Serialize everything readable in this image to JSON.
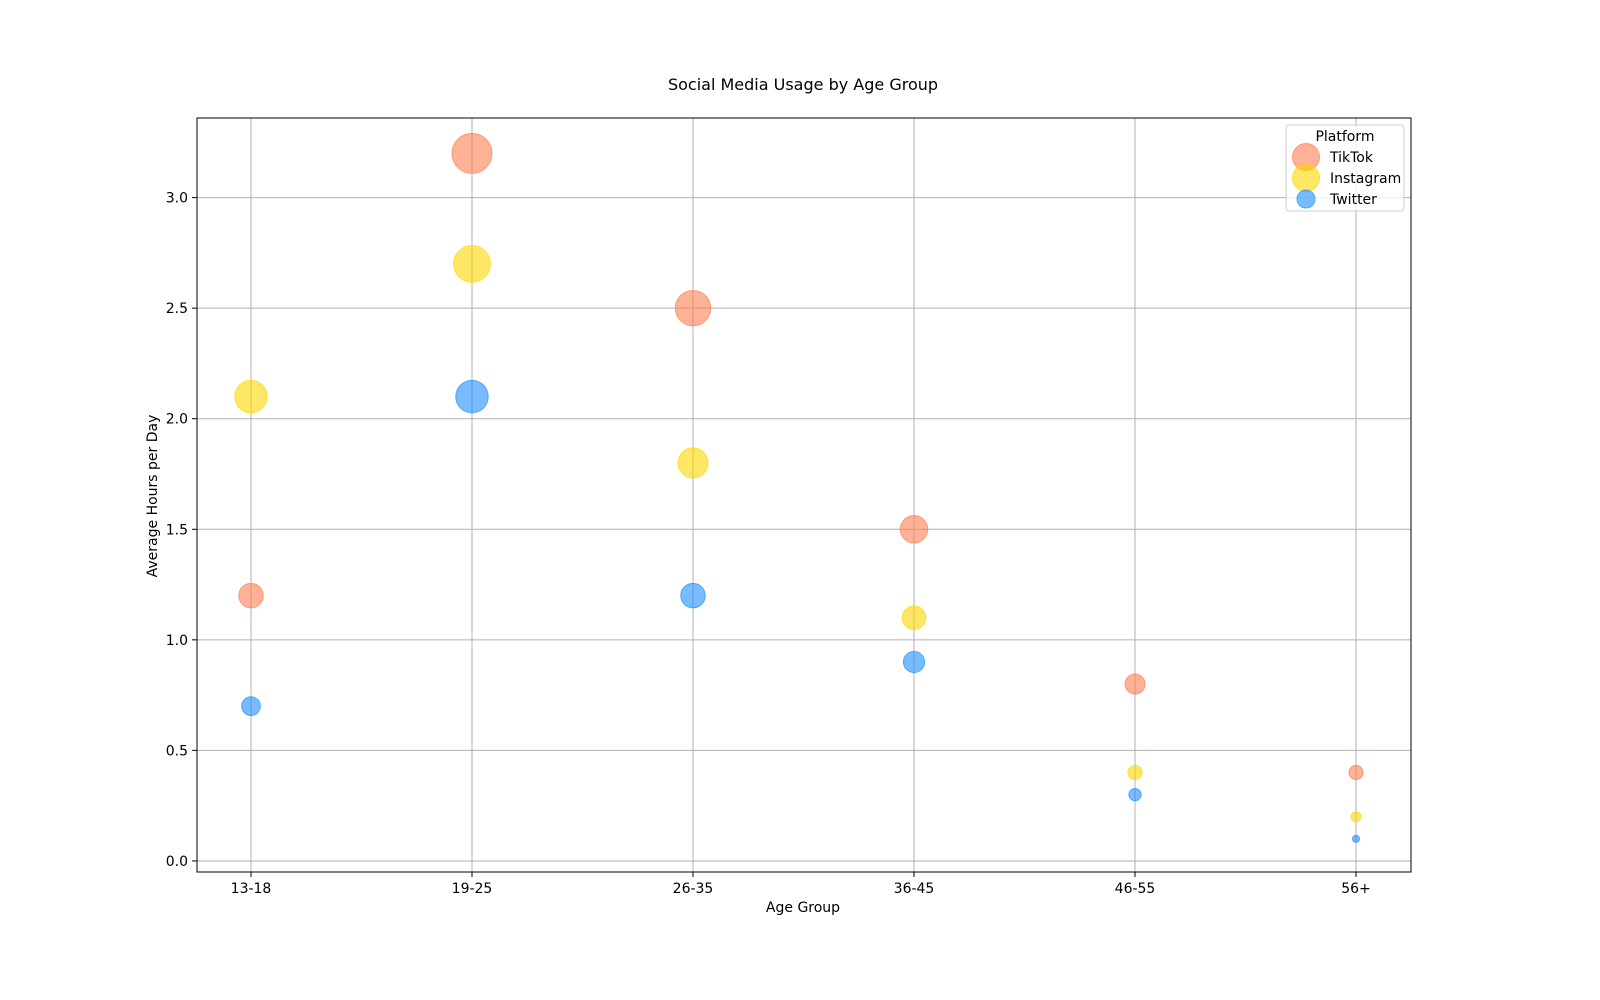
{
  "chart_data": {
    "type": "scatter",
    "title": "Social Media Usage by Age Group",
    "xlabel": "Age Group",
    "ylabel": "Average Hours per Day",
    "categories": [
      "13-18",
      "19-25",
      "26-35",
      "36-45",
      "46-55",
      "56+"
    ],
    "ylim": [
      -0.05,
      3.36
    ],
    "yticks": [
      0.0,
      0.5,
      1.0,
      1.5,
      2.0,
      2.5,
      3.0
    ],
    "ytick_labels": [
      "0.0",
      "0.5",
      "1.0",
      "1.5",
      "2.0",
      "2.5",
      "3.0"
    ],
    "grid": true,
    "bubble_size_encodes": "hours per day",
    "legend": {
      "title": "Platform",
      "placement": "top-right"
    },
    "series": [
      {
        "name": "TikTok",
        "color": "#ff7f50",
        "values": [
          1.2,
          3.2,
          2.5,
          1.5,
          0.8,
          0.4
        ]
      },
      {
        "name": "Instagram",
        "color": "#ffd700",
        "values": [
          2.1,
          2.7,
          1.8,
          1.1,
          0.4,
          0.2
        ]
      },
      {
        "name": "Twitter",
        "color": "#1e90ff",
        "values": [
          0.7,
          2.1,
          1.2,
          0.9,
          0.3,
          0.1
        ]
      }
    ]
  }
}
